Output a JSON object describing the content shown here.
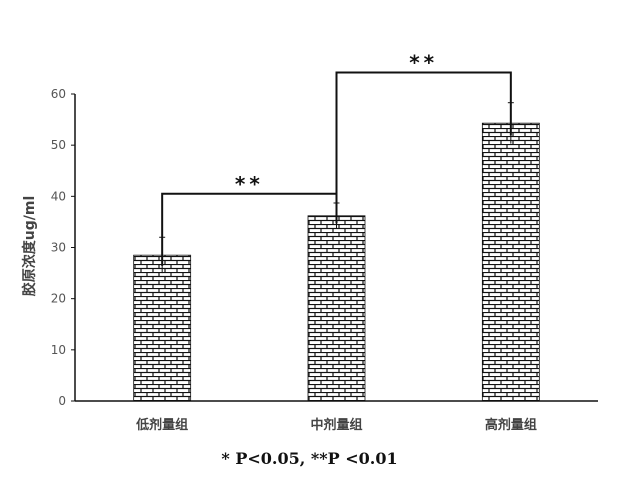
{
  "chart_data": {
    "type": "bar",
    "categories": [
      "低剂量组",
      "中剂量组",
      "高剂量组"
    ],
    "values": [
      28.5,
      36.2,
      54.3
    ],
    "errors": [
      3.5,
      2.5,
      4.0
    ],
    "ylabel": "胶原浓度ug/ml",
    "xlabel": "",
    "ylim": [
      0,
      60
    ],
    "yticks": [
      0,
      10,
      20,
      30,
      40,
      50,
      60
    ],
    "grid": false,
    "bar_pattern": "brick",
    "bar_color": "#111111",
    "significance": [
      {
        "from": 0,
        "to": 1,
        "label": "**",
        "level": 40.5
      },
      {
        "from": 1,
        "to": 2,
        "label": "**",
        "level": 64.2
      }
    ]
  },
  "footnote": "* P<0.05, **P <0.01"
}
